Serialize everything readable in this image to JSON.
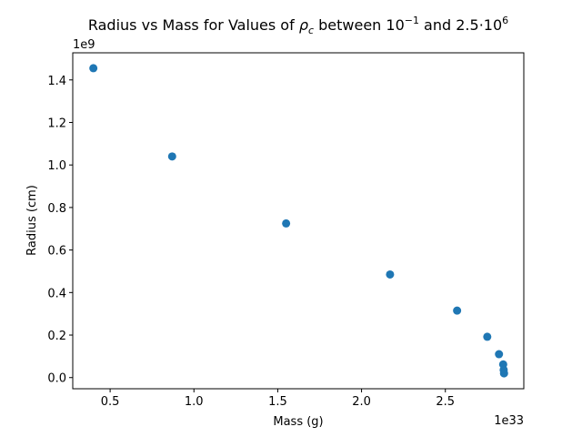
{
  "chart_data": {
    "type": "scatter",
    "title_parts": [
      "Radius vs Mass for Values of ",
      "ρ",
      "c",
      " between 10",
      "−1",
      " and 2.5·10",
      "6"
    ],
    "xlabel": "Mass (g)",
    "ylabel": "Radius (cm)",
    "x_offset_label": "1e33",
    "y_offset_label": "1e9",
    "xlim": [
      0.277,
      2.968
    ],
    "ylim": [
      -0.0525,
      1.5275
    ],
    "x_ticks": [
      0.5,
      1.0,
      1.5,
      2.0,
      2.5
    ],
    "x_tick_labels": [
      "0.5",
      "1.0",
      "1.5",
      "2.0",
      "2.5"
    ],
    "y_ticks": [
      0.0,
      0.2,
      0.4,
      0.6,
      0.8,
      1.0,
      1.2,
      1.4
    ],
    "y_tick_labels": [
      "0.0",
      "0.2",
      "0.4",
      "0.6",
      "0.8",
      "1.0",
      "1.2",
      "1.4"
    ],
    "grid": false,
    "marker_color": "#1f77b4",
    "points": [
      {
        "x": 0.4,
        "y": 1.455
      },
      {
        "x": 0.87,
        "y": 1.04
      },
      {
        "x": 1.55,
        "y": 0.725
      },
      {
        "x": 2.17,
        "y": 0.485
      },
      {
        "x": 2.57,
        "y": 0.315
      },
      {
        "x": 2.75,
        "y": 0.192
      },
      {
        "x": 2.82,
        "y": 0.11
      },
      {
        "x": 2.845,
        "y": 0.062
      },
      {
        "x": 2.848,
        "y": 0.036
      },
      {
        "x": 2.85,
        "y": 0.02
      }
    ]
  }
}
